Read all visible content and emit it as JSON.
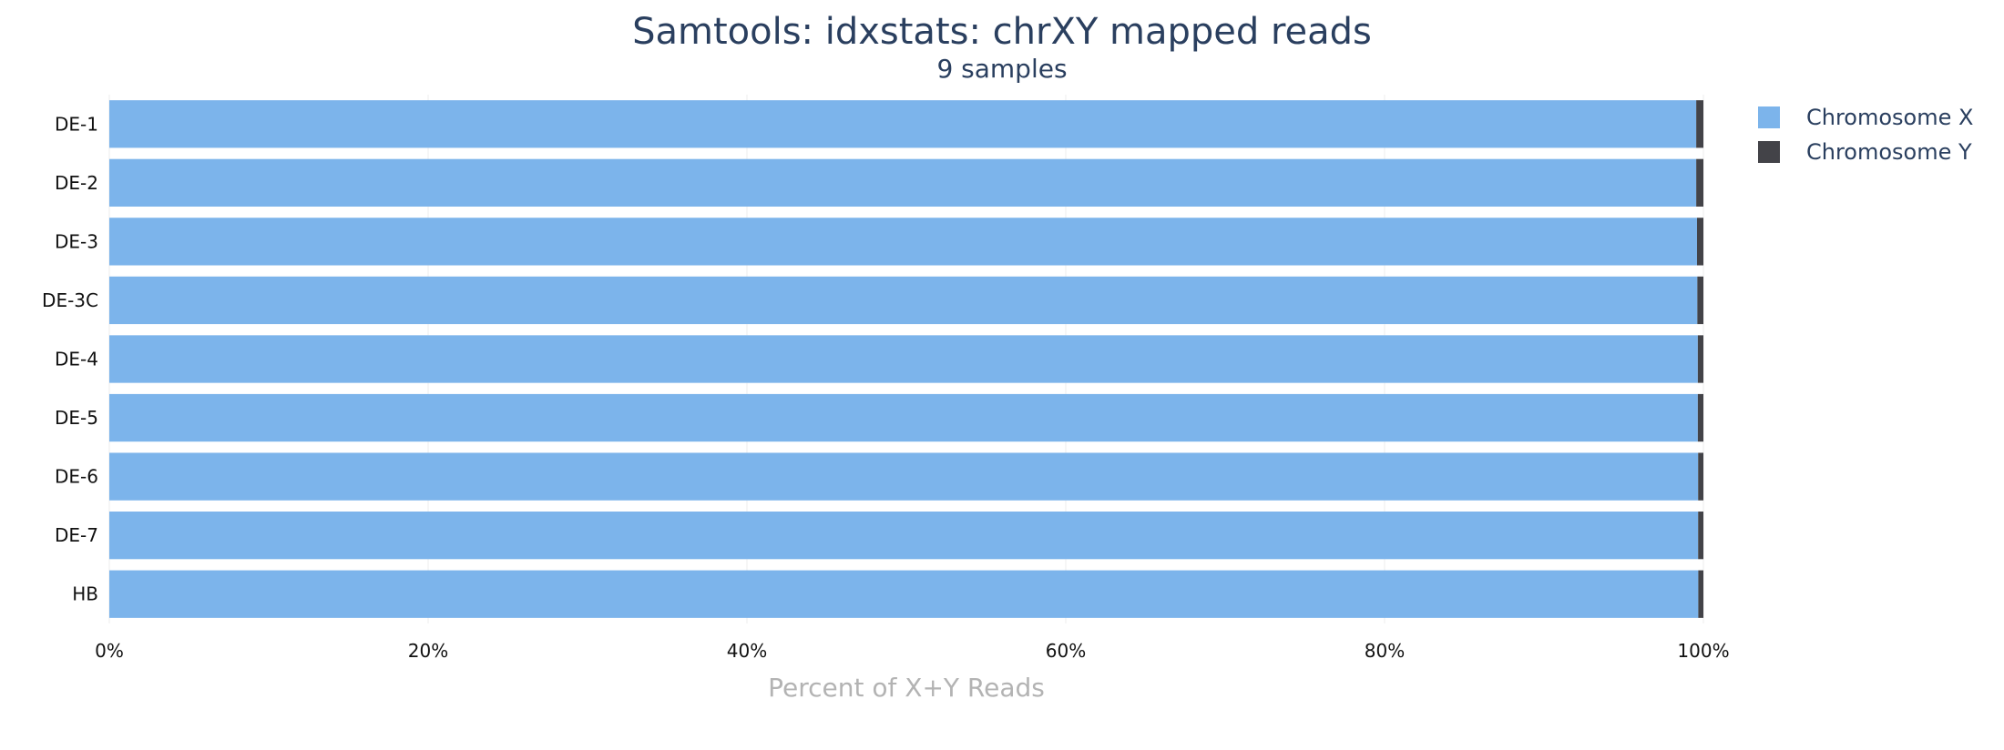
{
  "chart_data": {
    "type": "bar",
    "orientation": "horizontal",
    "stacked": true,
    "title": "Samtools: idxstats: chrXY mapped reads",
    "subtitle": "9 samples",
    "xlabel": "Percent of X+Y Reads",
    "ylabel": "",
    "xlim": [
      0,
      100
    ],
    "x_ticks": [
      "0%",
      "20%",
      "40%",
      "60%",
      "80%",
      "100%"
    ],
    "x_tick_values": [
      0,
      20,
      40,
      60,
      80,
      100
    ],
    "grid": true,
    "legend_position": "top-right",
    "categories": [
      "DE-1",
      "DE-2",
      "DE-3",
      "DE-3C",
      "DE-4",
      "DE-5",
      "DE-6",
      "DE-7",
      "HB"
    ],
    "series": [
      {
        "name": "Chromosome X",
        "color": "#7cb4eb",
        "values": [
          99.55,
          99.55,
          99.6,
          99.62,
          99.65,
          99.65,
          99.67,
          99.67,
          99.68
        ]
      },
      {
        "name": "Chromosome Y",
        "color": "#434348",
        "values": [
          0.45,
          0.45,
          0.4,
          0.38,
          0.35,
          0.35,
          0.33,
          0.33,
          0.32
        ]
      }
    ]
  }
}
